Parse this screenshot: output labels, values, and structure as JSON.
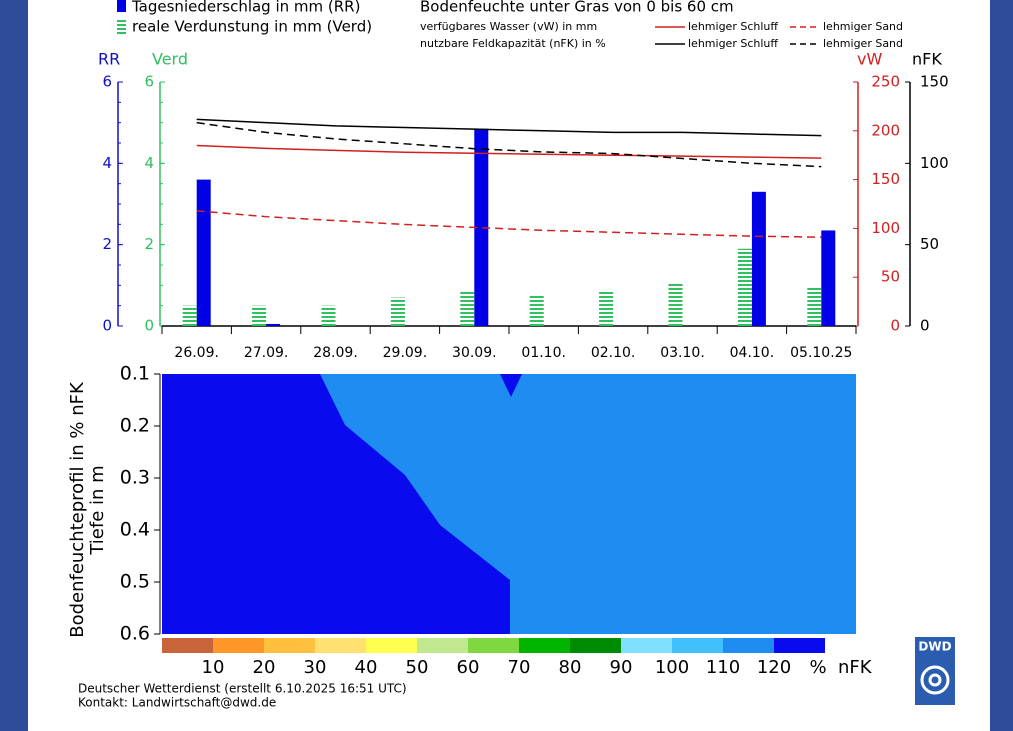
{
  "chart_data": [
    {
      "type": "combo",
      "title": "Bodenfeuchte unter Gras von 0 bis 60 cm",
      "categories": [
        "26.09.",
        "27.09.",
        "28.09.",
        "29.09.",
        "30.09.",
        "01.10.",
        "02.10.",
        "03.10.",
        "04.10.",
        "05.10.25"
      ],
      "axes": {
        "RR": {
          "label": "RR",
          "lim": [
            0,
            6
          ],
          "ticks": [
            0,
            2,
            4,
            6
          ],
          "color": "#1010c8"
        },
        "Verd": {
          "label": "Verd",
          "lim": [
            0,
            6
          ],
          "ticks": [
            0,
            2,
            4,
            6
          ],
          "color": "#30c060"
        },
        "vW": {
          "label": "vW",
          "lim": [
            0,
            250
          ],
          "ticks": [
            0,
            50,
            100,
            150,
            200,
            250
          ],
          "color": "#d02020"
        },
        "nFK": {
          "label": "nFK",
          "lim": [
            0,
            150
          ],
          "ticks": [
            0,
            50,
            100,
            150
          ],
          "color": "#000000"
        }
      },
      "legend_groups": [
        "verfügbares Wasser (vW) in mm",
        "nutzbare Feldkapazität (nFK) in %"
      ],
      "series": [
        {
          "name": "Tagesniederschlag in mm (RR)",
          "kind": "bar",
          "axis": "RR",
          "color": "#0000e6",
          "values": [
            3.6,
            0.05,
            0,
            0,
            4.85,
            0,
            0,
            0,
            3.3,
            2.35
          ]
        },
        {
          "name": "reale Verdunstung in mm (Verd)",
          "kind": "hatched-bar",
          "axis": "Verd",
          "color": "#30c060",
          "values": [
            0.5,
            0.5,
            0.5,
            0.7,
            0.85,
            0.75,
            0.85,
            1.05,
            1.9,
            0.95
          ]
        },
        {
          "name": "lehmiger Schluff",
          "kind": "line",
          "group": 0,
          "dash": false,
          "axis": "vW",
          "color": "#d02020",
          "values": [
            185,
            182,
            180,
            178,
            177,
            176,
            175,
            174,
            173,
            172
          ]
        },
        {
          "name": "lehmiger Sand",
          "kind": "line",
          "group": 0,
          "dash": true,
          "axis": "vW",
          "color": "#d02020",
          "values": [
            118,
            112,
            108,
            104,
            101,
            98,
            96,
            94,
            92,
            91
          ]
        },
        {
          "name": "lehmiger Schluff",
          "kind": "line",
          "group": 1,
          "dash": false,
          "axis": "nFK",
          "color": "#000000",
          "values": [
            127,
            125,
            123,
            122,
            121,
            120,
            119,
            119,
            118,
            117
          ]
        },
        {
          "name": "lehmiger Sand",
          "kind": "line",
          "group": 1,
          "dash": true,
          "axis": "nFK",
          "color": "#000000",
          "values": [
            125,
            119,
            115,
            112,
            109,
            107,
            106,
            103,
            100,
            98
          ]
        }
      ]
    },
    {
      "type": "contour",
      "ylabel": [
        "Bodenfeuchteprofil in % nFK",
        "Tiefe in m"
      ],
      "ylim": [
        0.1,
        0.6
      ],
      "yticks": [
        0.1,
        0.2,
        0.3,
        0.4,
        0.5,
        0.6
      ],
      "y_inverted": true,
      "colorbar": {
        "colors": [
          "#c8643c",
          "#ff9628",
          "#ffc040",
          "#ffe070",
          "#ffff50",
          "#c0e890",
          "#80d840",
          "#00b400",
          "#008c00",
          "#80e0ff",
          "#40c0ff",
          "#1e8cf0",
          "#0a0aee"
        ],
        "labels": [
          10,
          20,
          30,
          40,
          50,
          60,
          70,
          80,
          90,
          100,
          110,
          120
        ],
        "unit": [
          "%",
          "nFK"
        ]
      }
    }
  ],
  "footer": [
    "Deutscher Wetterdienst (erstellt 6.10.2025 16:51 UTC)",
    "Kontakt: Landwirtschaft@dwd.de"
  ],
  "logo": "DWD"
}
